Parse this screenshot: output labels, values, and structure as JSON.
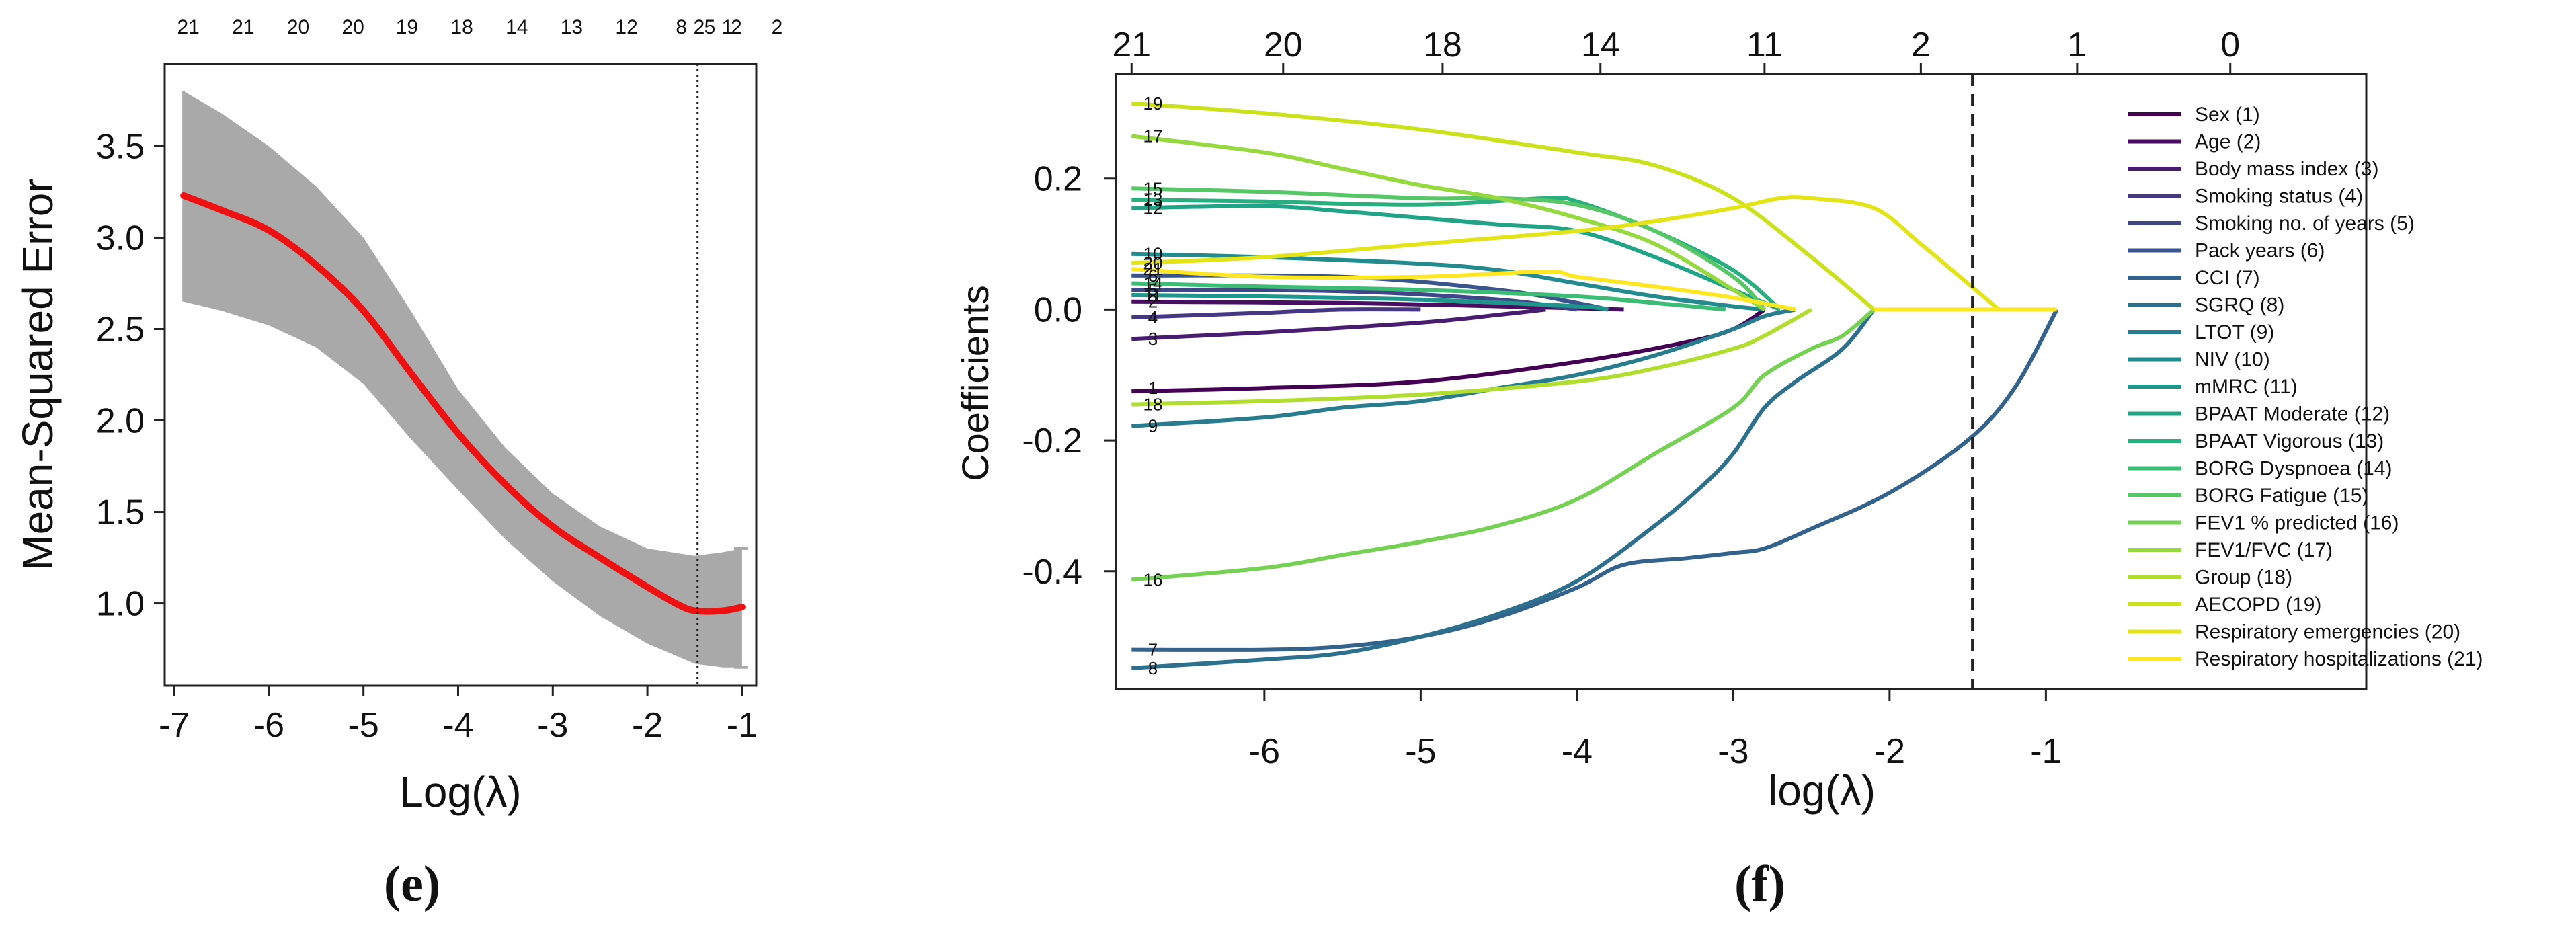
{
  "chart_data": [
    {
      "panel_label": "(e)",
      "type": "line",
      "xlabel": "Log(λ)",
      "ylabel": "Mean-Squared Error",
      "xlim": [
        -7.1,
        -0.85
      ],
      "ylim": [
        0.55,
        3.95
      ],
      "x_ticks": [
        -7,
        -6,
        -5,
        -4,
        -3,
        -2,
        -1
      ],
      "x_tick_labels": [
        "-7",
        "-6",
        "-5",
        "-4",
        "-3",
        "-2",
        "-1"
      ],
      "y_ticks": [
        1.0,
        1.5,
        2.0,
        2.5,
        3.0,
        3.5
      ],
      "y_tick_labels": [
        "1.0",
        "1.5",
        "2.0",
        "2.5",
        "3.0",
        "3.5"
      ],
      "top_axis_positions": [
        -6.85,
        -6.27,
        -5.69,
        -5.11,
        -4.54,
        -3.96,
        -3.38,
        -2.8,
        -2.22,
        -1.64,
        -1.34,
        -1.06,
        -0.63
      ],
      "top_axis_labels": [
        "21",
        "21",
        "20",
        "20",
        "19",
        "18",
        "14",
        "13",
        "12",
        "8",
        "5",
        "2",
        "2"
      ],
      "extra_top_labels": [
        "2",
        "1"
      ],
      "vline_x": -1.47,
      "series": [
        {
          "name": "Upper",
          "x": [
            -6.9,
            -6.5,
            -6,
            -5.5,
            -5,
            -4.5,
            -4,
            -3.5,
            -3,
            -2.5,
            -2,
            -1.5,
            -1.2,
            -1
          ],
          "values": [
            3.8,
            3.68,
            3.5,
            3.28,
            3.0,
            2.6,
            2.17,
            1.85,
            1.6,
            1.42,
            1.3,
            1.26,
            1.28,
            1.3
          ]
        },
        {
          "name": "Mean",
          "x": [
            -6.9,
            -6.5,
            -6,
            -5.5,
            -5,
            -4.5,
            -4,
            -3.5,
            -3,
            -2.5,
            -2,
            -1.7,
            -1.5,
            -1.2,
            -1
          ],
          "values": [
            3.23,
            3.15,
            3.04,
            2.85,
            2.6,
            2.26,
            1.93,
            1.65,
            1.42,
            1.25,
            1.09,
            1.0,
            0.96,
            0.96,
            0.98
          ]
        },
        {
          "name": "Lower",
          "x": [
            -6.9,
            -6.5,
            -6,
            -5.5,
            -5,
            -4.5,
            -4,
            -3.5,
            -3,
            -2.5,
            -2,
            -1.5,
            -1.2,
            -1
          ],
          "values": [
            2.65,
            2.6,
            2.52,
            2.4,
            2.2,
            1.9,
            1.62,
            1.35,
            1.12,
            0.93,
            0.78,
            0.67,
            0.65,
            0.65
          ]
        }
      ]
    },
    {
      "panel_label": "(f)",
      "type": "line",
      "xlabel": "log(λ)",
      "ylabel": "Coefficients",
      "xlim": [
        -6.95,
        1.05
      ],
      "ylim": [
        -0.58,
        0.36
      ],
      "x_ticks": [
        -6,
        -5,
        -4,
        -3,
        -2,
        -1
      ],
      "x_tick_labels": [
        "-6",
        "-5",
        "-4",
        "-3",
        "-2",
        "-1"
      ],
      "y_ticks": [
        0.2,
        0.0,
        -0.2,
        -0.4
      ],
      "y_tick_labels": [
        "0.2",
        "0.0",
        "-0.2",
        "-0.4"
      ],
      "top_axis_positions": [
        -6.85,
        -5.88,
        -4.86,
        -3.85,
        -2.8,
        -1.8,
        -0.8,
        0.18
      ],
      "top_axis_labels": [
        "21",
        "20",
        "18",
        "14",
        "11",
        "2",
        "1",
        "0"
      ],
      "vline_x": -1.47,
      "legend": [
        {
          "name": "Sex (1)",
          "color": "#440154"
        },
        {
          "name": "Age (2)",
          "color": "#470e61"
        },
        {
          "name": "Body mass index (3)",
          "color": "#481d6f"
        },
        {
          "name": "Smoking status (4)",
          "color": "#453781"
        },
        {
          "name": "Smoking no. of years (5)",
          "color": "#3f4788"
        },
        {
          "name": "Pack years (6)",
          "color": "#39558c"
        },
        {
          "name": "CCI (7)",
          "color": "#33638d"
        },
        {
          "name": "SGRQ (8)",
          "color": "#2d708e"
        },
        {
          "name": "LTOT (9)",
          "color": "#287c8e"
        },
        {
          "name": "NIV (10)",
          "color": "#238a8d"
        },
        {
          "name": "mMRC (11)",
          "color": "#1f968b"
        },
        {
          "name": "BPAAT Moderate (12)",
          "color": "#20a386"
        },
        {
          "name": "BPAAT Vigorous (13)",
          "color": "#29af7f"
        },
        {
          "name": "BORG Dyspnoea (14)",
          "color": "#3cbc75"
        },
        {
          "name": "BORG Fatigue (15)",
          "color": "#56c667"
        },
        {
          "name": "FEV1 % predicted (16)",
          "color": "#75d054"
        },
        {
          "name": "FEV1/FVC (17)",
          "color": "#95d840"
        },
        {
          "name": "Group (18)",
          "color": "#b0dd2f"
        },
        {
          "name": "AECOPD (19)",
          "color": "#cce11e"
        },
        {
          "name": "Respiratory emergencies (20)",
          "color": "#e3e418"
        },
        {
          "name": "Respiratory hospitalizations (21)",
          "color": "#fde725"
        }
      ],
      "left_path_labels": [
        {
          "text": "19",
          "y": 0.315
        },
        {
          "text": "17",
          "y": 0.265
        },
        {
          "text": "15",
          "y": 0.185
        },
        {
          "text": "13",
          "y": 0.168
        },
        {
          "text": "12",
          "y": 0.155
        },
        {
          "text": "10",
          "y": 0.085
        },
        {
          "text": "20",
          "y": 0.071
        },
        {
          "text": "21",
          "y": 0.062
        },
        {
          "text": "6",
          "y": 0.052
        },
        {
          "text": "14",
          "y": 0.04
        },
        {
          "text": "5",
          "y": 0.03
        },
        {
          "text": "11",
          "y": 0.022
        },
        {
          "text": "2",
          "y": 0.012
        },
        {
          "text": "4",
          "y": -0.012
        },
        {
          "text": "3",
          "y": -0.045
        },
        {
          "text": "1",
          "y": -0.12
        },
        {
          "text": "18",
          "y": -0.145
        },
        {
          "text": "9",
          "y": -0.178
        },
        {
          "text": "16",
          "y": -0.413
        },
        {
          "text": "7",
          "y": -0.52
        },
        {
          "text": "8",
          "y": -0.548
        }
      ],
      "series": [
        {
          "name": "Sex (1)",
          "color": "#440154",
          "x": [
            -6.85,
            -6,
            -5,
            -4,
            -3.3,
            -3,
            -2.8
          ],
          "values": [
            -0.125,
            -0.12,
            -0.11,
            -0.08,
            -0.05,
            -0.03,
            0
          ]
        },
        {
          "name": "Age (2)",
          "color": "#470e61",
          "x": [
            -6.85,
            -5.5,
            -4.5,
            -4,
            -3.7
          ],
          "values": [
            0.012,
            0.01,
            0.005,
            0.002,
            0
          ]
        },
        {
          "name": "Body mass index (3)",
          "color": "#481d6f",
          "x": [
            -6.85,
            -6,
            -5,
            -4.5,
            -4.2
          ],
          "values": [
            -0.045,
            -0.035,
            -0.02,
            -0.008,
            0
          ]
        },
        {
          "name": "Smoking status (4)",
          "color": "#453781",
          "x": [
            -6.85,
            -6,
            -5.5,
            -5
          ],
          "values": [
            -0.012,
            -0.005,
            0,
            0
          ]
        },
        {
          "name": "Smoking no. of years (5)",
          "color": "#3f4788",
          "x": [
            -6.85,
            -5.5,
            -4.5,
            -4
          ],
          "values": [
            0.03,
            0.028,
            0.015,
            0
          ]
        },
        {
          "name": "Pack years (6)",
          "color": "#39558c",
          "x": [
            -6.85,
            -5.5,
            -4.5,
            -4,
            -3.8
          ],
          "values": [
            0.052,
            0.05,
            0.03,
            0.01,
            0
          ]
        },
        {
          "name": "CCI (7)",
          "color": "#33638d",
          "x": [
            -6.85,
            -6,
            -5.5,
            -5,
            -4.5,
            -4,
            -3.7,
            -3.3,
            -3.0,
            -2.8,
            -2.5,
            -2,
            -1.5,
            -1.2,
            -0.93
          ],
          "values": [
            -0.52,
            -0.52,
            -0.515,
            -0.5,
            -0.47,
            -0.425,
            -0.39,
            -0.38,
            -0.372,
            -0.365,
            -0.335,
            -0.28,
            -0.2,
            -0.12,
            0
          ]
        },
        {
          "name": "SGRQ (8)",
          "color": "#2d708e",
          "x": [
            -6.85,
            -6,
            -5.5,
            -5,
            -4.5,
            -4,
            -3.5,
            -3.2,
            -3,
            -2.8,
            -2.6,
            -2.3,
            -2.1
          ],
          "values": [
            -0.548,
            -0.535,
            -0.525,
            -0.5,
            -0.465,
            -0.415,
            -0.33,
            -0.27,
            -0.22,
            -0.15,
            -0.11,
            -0.06,
            0
          ]
        },
        {
          "name": "LTOT (9)",
          "color": "#287c8e",
          "x": [
            -6.85,
            -6,
            -5.5,
            -5,
            -4.5,
            -4,
            -3.5,
            -3,
            -2.8,
            -2.6
          ],
          "values": [
            -0.178,
            -0.165,
            -0.15,
            -0.14,
            -0.12,
            -0.1,
            -0.07,
            -0.03,
            -0.01,
            0
          ]
        },
        {
          "name": "NIV (10)",
          "color": "#238a8d",
          "x": [
            -6.85,
            -6,
            -5,
            -4.5,
            -4,
            -3.5,
            -3,
            -2.8
          ],
          "values": [
            0.085,
            0.08,
            0.07,
            0.06,
            0.04,
            0.02,
            0.005,
            0
          ]
        },
        {
          "name": "mMRC (11)",
          "color": "#1f968b",
          "x": [
            -6.85,
            -6,
            -5,
            -4,
            -3.8
          ],
          "values": [
            0.022,
            0.02,
            0.015,
            0.005,
            0
          ]
        },
        {
          "name": "BPAAT Moderate (12)",
          "color": "#20a386",
          "x": [
            -6.85,
            -6,
            -5.5,
            -5,
            -4.5,
            -4,
            -3.5,
            -3,
            -2.7
          ],
          "values": [
            0.155,
            0.158,
            0.15,
            0.14,
            0.13,
            0.12,
            0.08,
            0.03,
            0
          ]
        },
        {
          "name": "BPAAT Vigorous (13)",
          "color": "#29af7f",
          "x": [
            -6.85,
            -6,
            -5,
            -4.2,
            -4,
            -3.5,
            -3,
            -2.7
          ],
          "values": [
            0.168,
            0.165,
            0.16,
            0.17,
            0.165,
            0.12,
            0.06,
            0
          ]
        },
        {
          "name": "BORG Dyspnoea (14)",
          "color": "#3cbc75",
          "x": [
            -6.85,
            -6,
            -5,
            -4,
            -3.5,
            -3.05
          ],
          "values": [
            0.04,
            0.035,
            0.03,
            0.02,
            0.01,
            0
          ]
        },
        {
          "name": "BORG Fatigue (15)",
          "color": "#56c667",
          "x": [
            -6.85,
            -6,
            -5,
            -4.5,
            -4,
            -3.5,
            -3,
            -2.8
          ],
          "values": [
            0.185,
            0.18,
            0.17,
            0.17,
            0.16,
            0.12,
            0.05,
            0
          ]
        },
        {
          "name": "FEV1 % predicted (16)",
          "color": "#75d054",
          "x": [
            -6.85,
            -6,
            -5.5,
            -5,
            -4.5,
            -4,
            -3.5,
            -3,
            -2.8,
            -2.5,
            -2.3,
            -2.1
          ],
          "values": [
            -0.413,
            -0.395,
            -0.375,
            -0.355,
            -0.33,
            -0.29,
            -0.22,
            -0.15,
            -0.1,
            -0.06,
            -0.04,
            0
          ]
        },
        {
          "name": "FEV1/FVC (17)",
          "color": "#95d840",
          "x": [
            -6.85,
            -6,
            -5.5,
            -5,
            -4.5,
            -4,
            -3.5,
            -3,
            -2.8
          ],
          "values": [
            0.265,
            0.24,
            0.215,
            0.19,
            0.17,
            0.14,
            0.1,
            0.03,
            0
          ]
        },
        {
          "name": "Group (18)",
          "color": "#b0dd2f",
          "x": [
            -6.85,
            -6,
            -5,
            -4,
            -3.5,
            -3,
            -2.8,
            -2.5
          ],
          "values": [
            -0.145,
            -0.14,
            -0.13,
            -0.11,
            -0.09,
            -0.06,
            -0.04,
            0
          ]
        },
        {
          "name": "AECOPD (19)",
          "color": "#cce11e",
          "x": [
            -6.85,
            -6,
            -5,
            -4,
            -3.5,
            -3,
            -2.5,
            -2.1
          ],
          "values": [
            0.315,
            0.3,
            0.275,
            0.24,
            0.22,
            0.17,
            0.08,
            0
          ]
        },
        {
          "name": "Respiratory emergencies (20)",
          "color": "#e3e418",
          "x": [
            -6.85,
            -6,
            -5,
            -4,
            -3.5,
            -3,
            -2.7,
            -2.5,
            -2.1,
            -1.8,
            -1.5,
            -1.3
          ],
          "values": [
            0.071,
            0.08,
            0.1,
            0.12,
            0.135,
            0.155,
            0.17,
            0.17,
            0.155,
            0.1,
            0.04,
            0
          ]
        },
        {
          "name": "Respiratory hospitalizations (21)",
          "color": "#fde725",
          "x": [
            -6.85,
            -6,
            -5,
            -4.2,
            -4,
            -3.5,
            -3,
            -2.6
          ],
          "values": [
            0.062,
            0.05,
            0.05,
            0.058,
            0.05,
            0.035,
            0.018,
            0
          ]
        }
      ]
    }
  ]
}
